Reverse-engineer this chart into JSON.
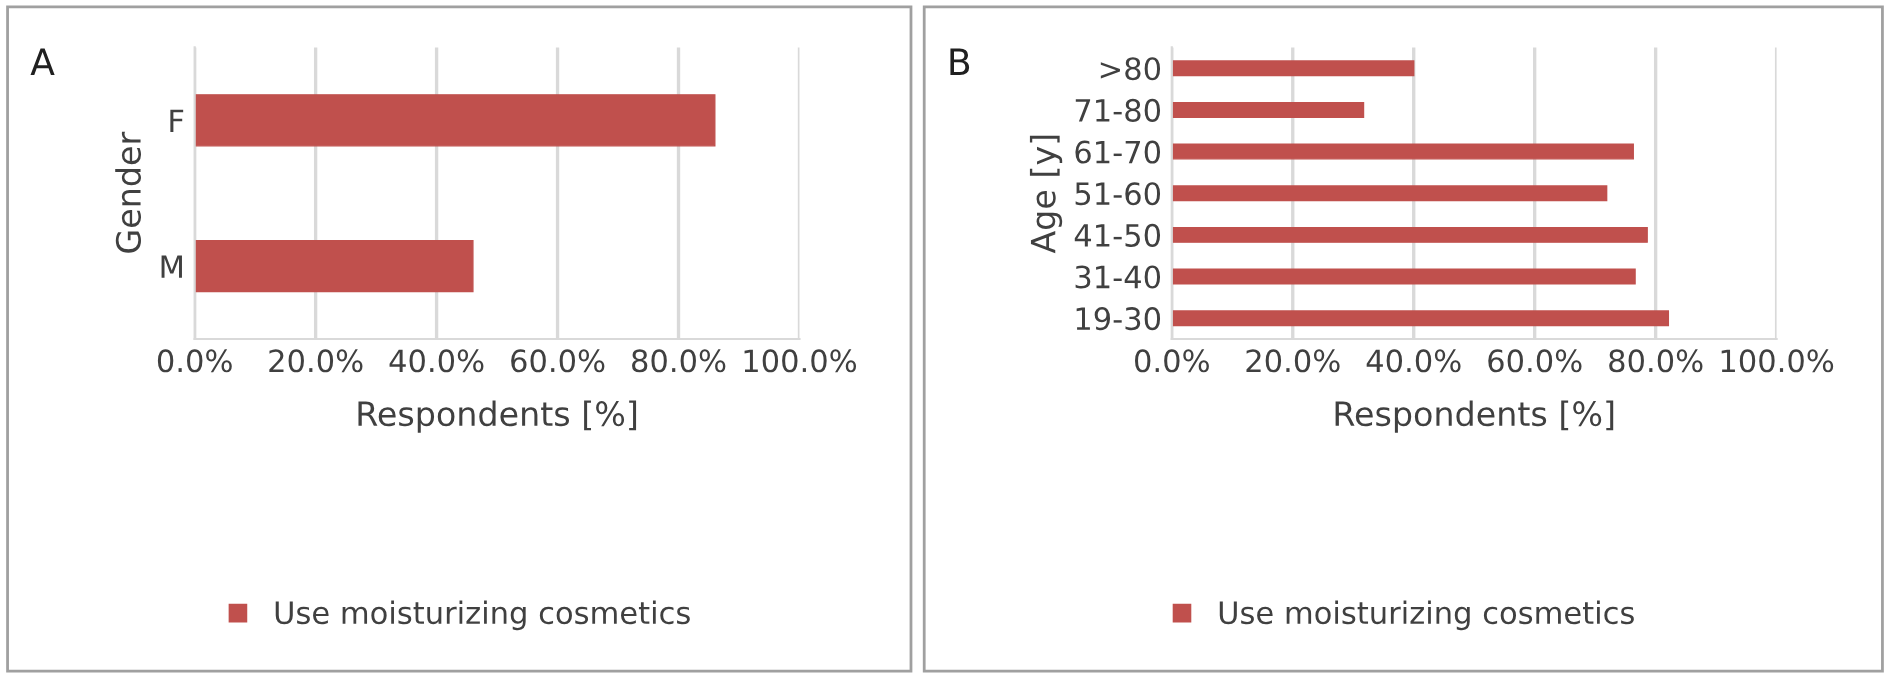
{
  "chart_data": [
    {
      "type": "bar",
      "orientation": "horizontal",
      "categories": [
        "F",
        "M"
      ],
      "series": [
        {
          "name": "Use moisturizing cosmetics",
          "color": "#c0504d",
          "values": [
            86,
            46
          ]
        }
      ],
      "xlabel": "Respondents [%]",
      "ylabel": "Gender",
      "xlim": [
        0,
        100
      ],
      "xticks": [
        {
          "value": 0,
          "label": "0.0%"
        },
        {
          "value": 20,
          "label": "20.0%"
        },
        {
          "value": 40,
          "label": "40.0%"
        },
        {
          "value": 60,
          "label": "60.0%"
        },
        {
          "value": 80,
          "label": "80.0%"
        },
        {
          "value": 100,
          "label": "100.0%"
        }
      ],
      "grid": "x",
      "legend": "bottom",
      "annotations": [
        "A"
      ]
    },
    {
      "type": "bar",
      "orientation": "horizontal",
      "categories": [
        ">80",
        "71-80",
        "61-70",
        "51-60",
        "41-50",
        "31-40",
        "19-30"
      ],
      "series": [
        {
          "name": "Use moisturizing cosmetics",
          "color": "#c0504d",
          "values": [
            40,
            31.7,
            76.3,
            71.9,
            78.6,
            76.6,
            82.1
          ]
        }
      ],
      "xlabel": "Respondents [%]",
      "ylabel": "Age [y]",
      "xlim": [
        0,
        100
      ],
      "xticks": [
        {
          "value": 0,
          "label": "0.0%"
        },
        {
          "value": 20,
          "label": "20.0%"
        },
        {
          "value": 40,
          "label": "40.0%"
        },
        {
          "value": 60,
          "label": "60.0%"
        },
        {
          "value": 80,
          "label": "80.0%"
        },
        {
          "value": 100,
          "label": "100.0%"
        }
      ],
      "grid": "x",
      "legend": "bottom",
      "annotations": [
        "B"
      ]
    }
  ]
}
